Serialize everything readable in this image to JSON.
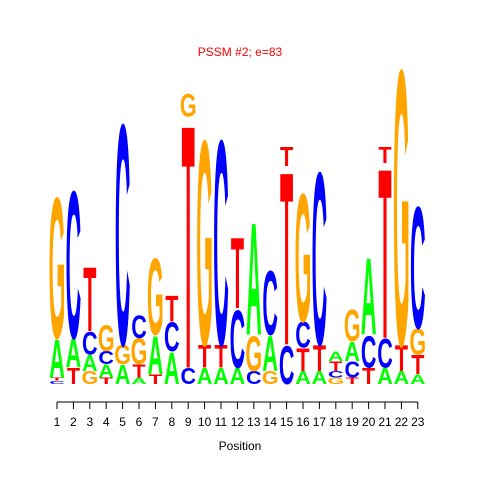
{
  "chart_data": {
    "type": "sequence-logo",
    "title": "PSSM #2; e=83",
    "xlabel": "Position",
    "ylabel": "",
    "grid": false,
    "colors": {
      "A": "#00ff00",
      "C": "#0000ff",
      "G": "#ffa500",
      "T": "#ff0000"
    },
    "x_ticks": [
      "1",
      "2",
      "3",
      "4",
      "5",
      "6",
      "7",
      "8",
      "9",
      "10",
      "11",
      "12",
      "13",
      "14",
      "15",
      "16",
      "17",
      "18",
      "19",
      "20",
      "21",
      "22",
      "23"
    ],
    "columns": [
      {
        "position": 1,
        "letters": [
          [
            "C",
            0.05
          ],
          [
            "T",
            0.05
          ],
          [
            "A",
            0.6
          ],
          [
            "G",
            2.2
          ]
        ]
      },
      {
        "position": 2,
        "letters": [
          [
            "T",
            0.25
          ],
          [
            "A",
            0.45
          ],
          [
            "C",
            2.3
          ]
        ]
      },
      {
        "position": 3,
        "letters": [
          [
            "G",
            0.2
          ],
          [
            "A",
            0.25
          ],
          [
            "C",
            0.35
          ],
          [
            "T",
            1.0
          ]
        ]
      },
      {
        "position": 4,
        "letters": [
          [
            "T",
            0.1
          ],
          [
            "A",
            0.2
          ],
          [
            "C",
            0.2
          ],
          [
            "G",
            0.4
          ]
        ]
      },
      {
        "position": 5,
        "letters": [
          [
            "A",
            0.3
          ],
          [
            "G",
            0.3
          ],
          [
            "C",
            3.45
          ]
        ]
      },
      {
        "position": 6,
        "letters": [
          [
            "A",
            0.1
          ],
          [
            "T",
            0.2
          ],
          [
            "G",
            0.4
          ],
          [
            "C",
            0.35
          ]
        ]
      },
      {
        "position": 7,
        "letters": [
          [
            "T",
            0.15
          ],
          [
            "A",
            0.6
          ],
          [
            "G",
            1.2
          ]
        ]
      },
      {
        "position": 8,
        "letters": [
          [
            "A",
            0.5
          ],
          [
            "C",
            0.45
          ],
          [
            "T",
            0.4
          ]
        ]
      },
      {
        "position": 9,
        "letters": [
          [
            "C",
            0.25
          ],
          [
            "T",
            3.8
          ],
          [
            "G",
            0.35
          ]
        ]
      },
      {
        "position": 10,
        "letters": [
          [
            "A",
            0.25
          ],
          [
            "T",
            0.35
          ],
          [
            "G",
            3.2
          ]
        ]
      },
      {
        "position": 11,
        "letters": [
          [
            "A",
            0.25
          ],
          [
            "T",
            0.35
          ],
          [
            "C",
            3.2
          ]
        ]
      },
      {
        "position": 12,
        "letters": [
          [
            "A",
            0.25
          ],
          [
            "C",
            0.9
          ],
          [
            "T",
            1.1
          ]
        ]
      },
      {
        "position": 13,
        "letters": [
          [
            "C",
            0.2
          ],
          [
            "G",
            0.55
          ],
          [
            "A",
            1.75
          ]
        ]
      },
      {
        "position": 14,
        "letters": [
          [
            "G",
            0.2
          ],
          [
            "A",
            0.55
          ],
          [
            "C",
            1.0
          ]
        ]
      },
      {
        "position": 15,
        "letters": [
          [
            "C",
            0.6
          ],
          [
            "T",
            2.7
          ],
          [
            "T",
            0.3
          ]
        ]
      },
      {
        "position": 16,
        "letters": [
          [
            "A",
            0.2
          ],
          [
            "T",
            0.35
          ],
          [
            "C",
            0.4
          ],
          [
            "G",
            2.0
          ]
        ]
      },
      {
        "position": 17,
        "letters": [
          [
            "A",
            0.2
          ],
          [
            "T",
            0.4
          ],
          [
            "C",
            2.7
          ]
        ]
      },
      {
        "position": 18,
        "letters": [
          [
            "G",
            0.1
          ],
          [
            "C",
            0.1
          ],
          [
            "T",
            0.15
          ],
          [
            "A",
            0.15
          ]
        ]
      },
      {
        "position": 19,
        "letters": [
          [
            "T",
            0.1
          ],
          [
            "C",
            0.25
          ],
          [
            "A",
            0.3
          ],
          [
            "G",
            0.5
          ]
        ]
      },
      {
        "position": 20,
        "letters": [
          [
            "T",
            0.25
          ],
          [
            "C",
            0.5
          ],
          [
            "A",
            1.2
          ]
        ]
      },
      {
        "position": 21,
        "letters": [
          [
            "A",
            0.25
          ],
          [
            "C",
            0.45
          ],
          [
            "T",
            2.65
          ],
          [
            "T",
            0.25
          ]
        ]
      },
      {
        "position": 22,
        "letters": [
          [
            "A",
            0.2
          ],
          [
            "T",
            0.4
          ],
          [
            "G",
            4.3
          ]
        ]
      },
      {
        "position": 23,
        "letters": [
          [
            "A",
            0.15
          ],
          [
            "T",
            0.3
          ],
          [
            "G",
            0.4
          ],
          [
            "C",
            1.9
          ]
        ]
      }
    ]
  }
}
